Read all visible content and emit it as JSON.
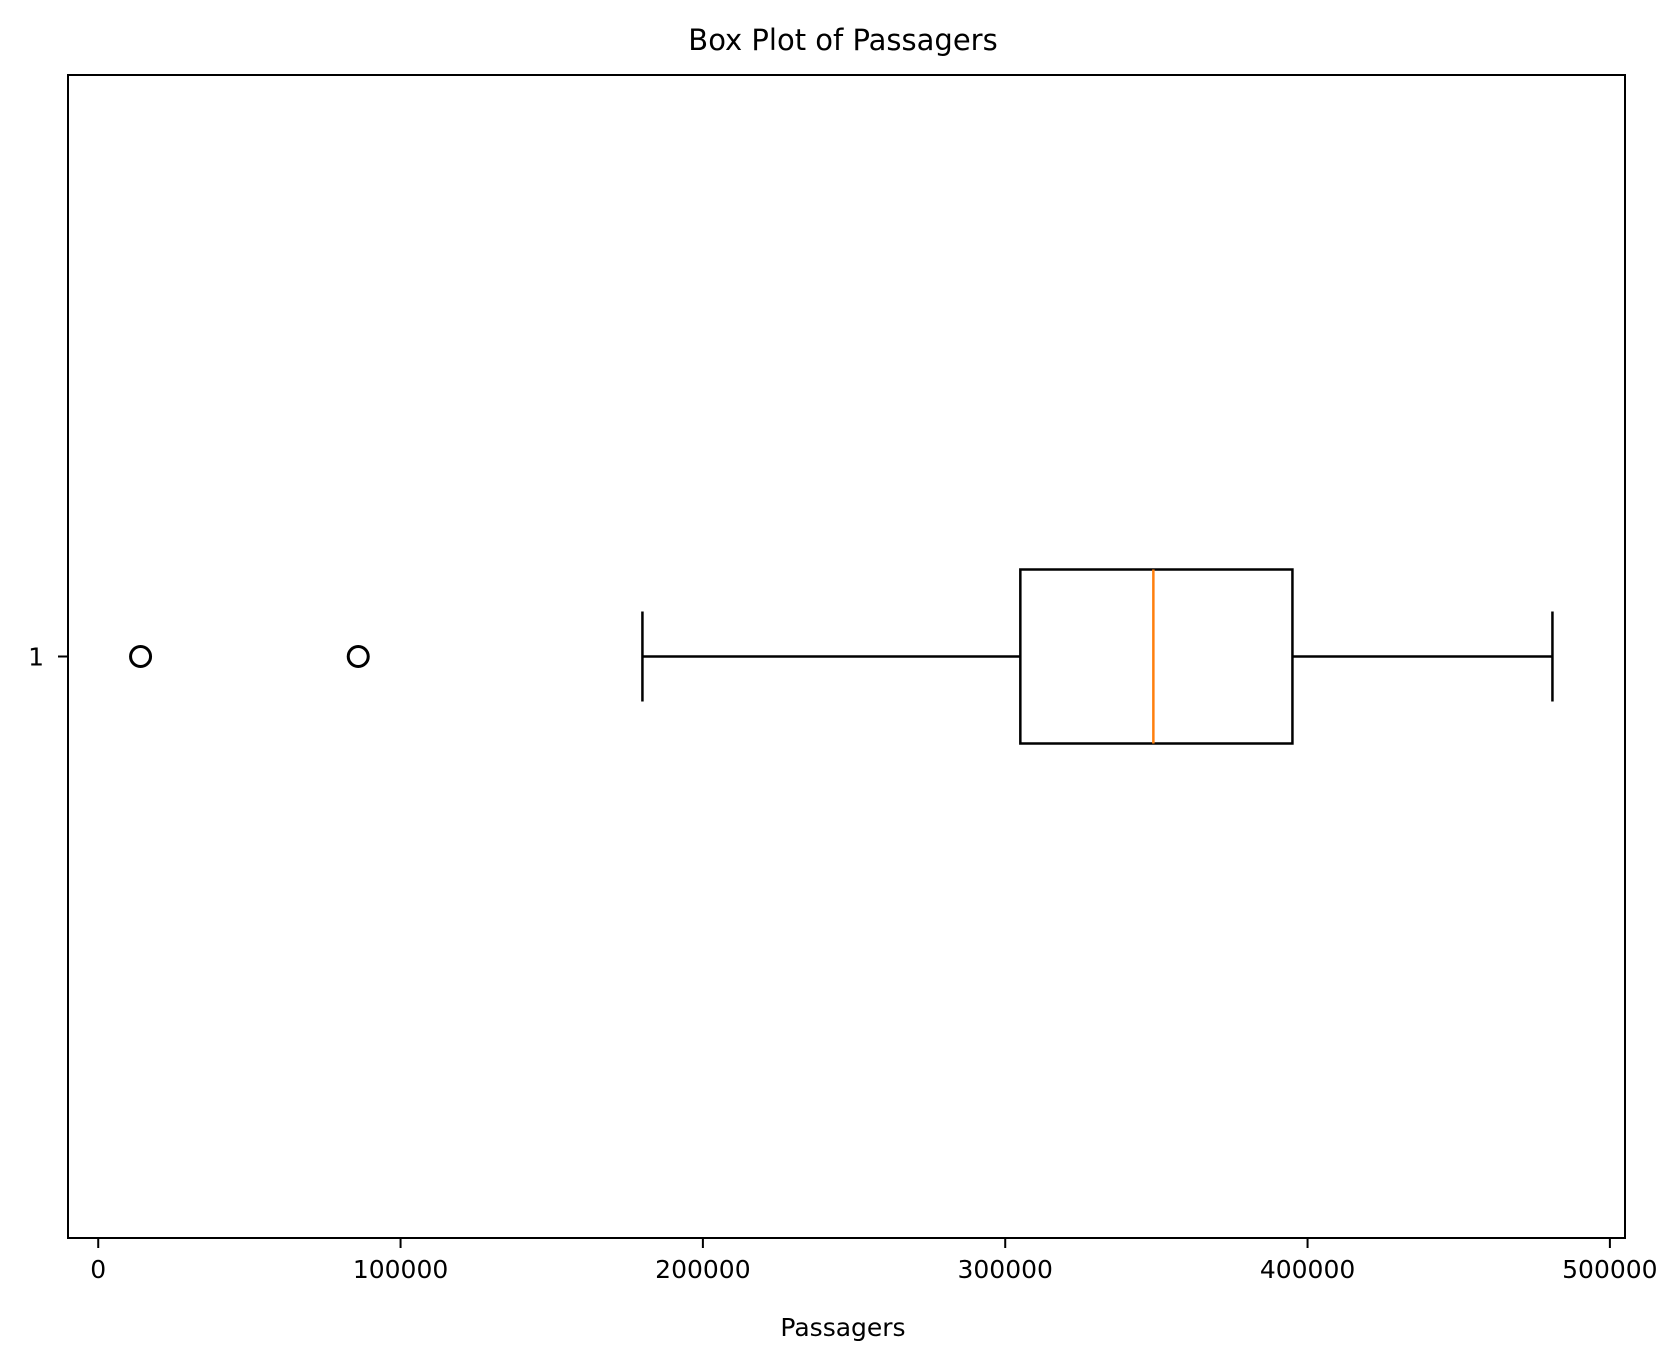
{
  "chart_data": {
    "type": "boxplot",
    "orientation": "horizontal",
    "title": "Box Plot of Passagers",
    "xlabel": "Passagers",
    "ylabel": "",
    "xlim": [
      -10000,
      505000
    ],
    "x_ticks": [
      0,
      100000,
      200000,
      300000,
      400000,
      500000
    ],
    "x_tick_labels": [
      "0",
      "100000",
      "200000",
      "300000",
      "400000",
      "500000"
    ],
    "categories": [
      "1"
    ],
    "boxes": [
      {
        "category": "1",
        "whisker_low": 180000,
        "q1": 305000,
        "median": 349000,
        "q3": 395000,
        "whisker_high": 481000,
        "outliers": [
          14000,
          86000
        ]
      }
    ],
    "grid": false,
    "colors": {
      "box": "#000000",
      "median": "#ff7f0e",
      "outlier": "#000000"
    }
  }
}
